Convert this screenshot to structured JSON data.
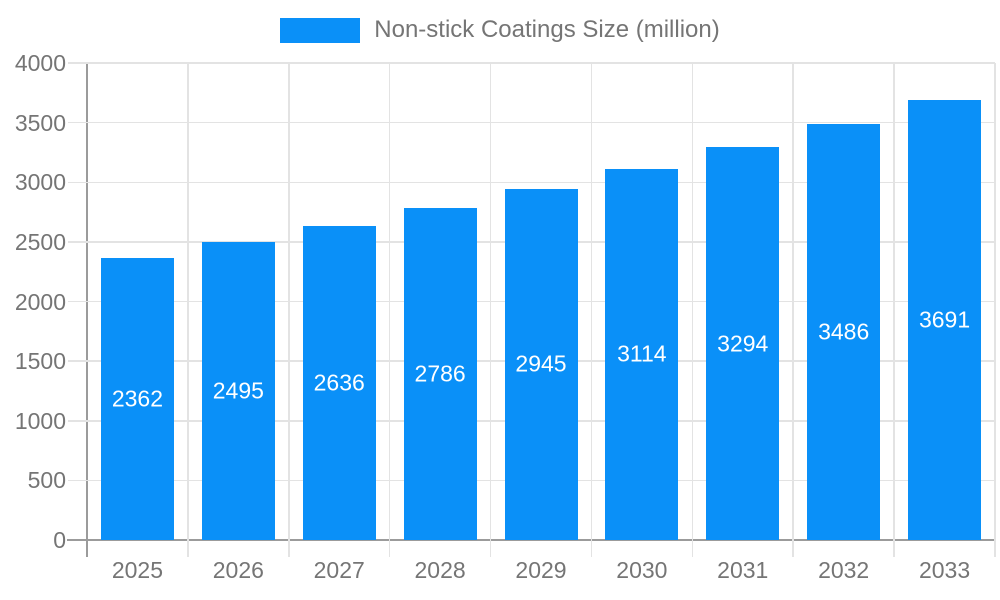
{
  "chart_data": {
    "type": "bar",
    "title": "Non-stick Coatings Size (million)",
    "categories": [
      "2025",
      "2026",
      "2027",
      "2028",
      "2029",
      "2030",
      "2031",
      "2032",
      "2033"
    ],
    "values": [
      2362,
      2495,
      2636,
      2786,
      2945,
      3114,
      3294,
      3486,
      3691
    ],
    "xlabel": "",
    "ylabel": "",
    "ylim": [
      0,
      4000
    ],
    "yticks": [
      0,
      500,
      1000,
      1500,
      2000,
      2500,
      3000,
      3500,
      4000
    ],
    "grid": true,
    "legend_position": "top",
    "value_label_position": "inside-center"
  },
  "colors": {
    "bar": "#0A90F8",
    "grid": "#E3E3E3",
    "axis": "#9B9B9B",
    "tick_label_text": "#757575",
    "bar_value_label_text": "#FFFFFF",
    "background": "#FFFFFF"
  }
}
